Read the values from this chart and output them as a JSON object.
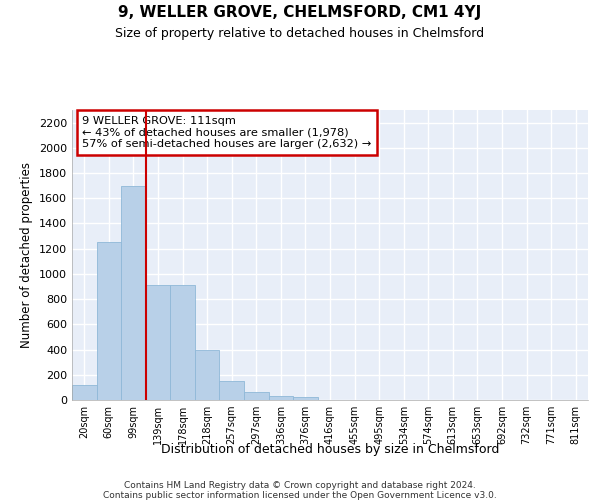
{
  "title": "9, WELLER GROVE, CHELMSFORD, CM1 4YJ",
  "subtitle": "Size of property relative to detached houses in Chelmsford",
  "xlabel": "Distribution of detached houses by size in Chelmsford",
  "ylabel": "Number of detached properties",
  "categories": [
    "20sqm",
    "60sqm",
    "99sqm",
    "139sqm",
    "178sqm",
    "218sqm",
    "257sqm",
    "297sqm",
    "336sqm",
    "376sqm",
    "416sqm",
    "455sqm",
    "495sqm",
    "534sqm",
    "574sqm",
    "613sqm",
    "653sqm",
    "692sqm",
    "732sqm",
    "771sqm",
    "811sqm"
  ],
  "values": [
    120,
    1250,
    1700,
    910,
    910,
    395,
    150,
    65,
    35,
    25,
    0,
    0,
    0,
    0,
    0,
    0,
    0,
    0,
    0,
    0,
    0
  ],
  "bar_color": "#b8d0e8",
  "bar_edge_color": "#8fb8d8",
  "vline_x": 2.5,
  "vline_color": "#cc0000",
  "ylim": [
    0,
    2300
  ],
  "yticks": [
    0,
    200,
    400,
    600,
    800,
    1000,
    1200,
    1400,
    1600,
    1800,
    2000,
    2200
  ],
  "annotation_box_text": "9 WELLER GROVE: 111sqm\n← 43% of detached houses are smaller (1,978)\n57% of semi-detached houses are larger (2,632) →",
  "annotation_box_color": "#cc0000",
  "background_color": "#e8eef8",
  "grid_color": "#ffffff",
  "footer1": "Contains HM Land Registry data © Crown copyright and database right 2024.",
  "footer2": "Contains public sector information licensed under the Open Government Licence v3.0."
}
